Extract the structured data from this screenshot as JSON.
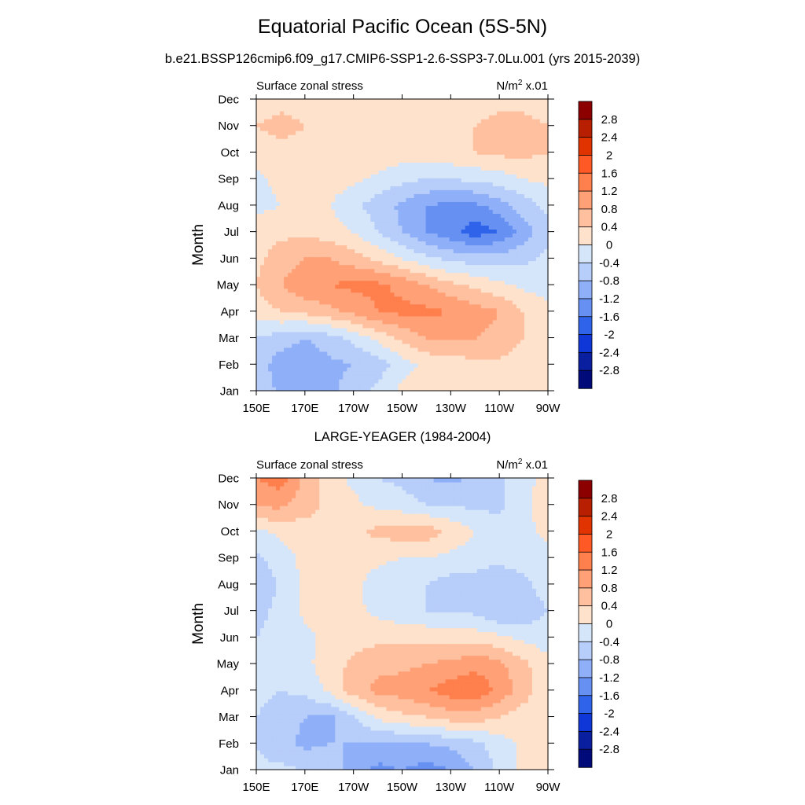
{
  "figure": {
    "title": "Equatorial Pacific Ocean (5S-5N)",
    "case_title": "b.e21.BSSP126cmip6.f09_g17.CMIP6-SSP1-2.6-SSP3-7.0Lu.001 (yrs 2015-2039)",
    "obs_title": "LARGE-YEAGER (1984-2004)"
  },
  "colorbar": {
    "labels": [
      "2.8",
      "2.4",
      "2",
      "1.6",
      "1.2",
      "0.8",
      "0.4",
      "0",
      "-0.4",
      "-0.8",
      "-1.2",
      "-1.6",
      "-2",
      "-2.4",
      "-2.8"
    ],
    "colors": [
      "#8c0000",
      "#b81f00",
      "#e03300",
      "#ff5a26",
      "#ff7f4d",
      "#ffa077",
      "#ffc0a0",
      "#ffe2cc",
      "#d6e6fa",
      "#b7cdfa",
      "#8fb0f8",
      "#6690f2",
      "#2e63ea",
      "#0f36d6",
      "#0a1fa0",
      "#000a78"
    ]
  },
  "chart_data": [
    {
      "type": "heatmap",
      "subtitle_left": "Surface zonal stress",
      "subtitle_right_base": "N/m",
      "subtitle_right_exp": "2",
      "subtitle_right_scale": " x.01",
      "ylabel": "Month",
      "x_tick_labels": [
        "150E",
        "170E",
        "170W",
        "150W",
        "130W",
        "110W",
        "90W"
      ],
      "x_ticks_deg": [
        150,
        170,
        190,
        210,
        230,
        250,
        270
      ],
      "x_range_deg": [
        150,
        270
      ],
      "y_tick_labels": [
        "Jan",
        "Feb",
        "Mar",
        "Apr",
        "May",
        "Jun",
        "Jul",
        "Aug",
        "Sep",
        "Oct",
        "Nov",
        "Dec"
      ],
      "levels": [
        -2.8,
        -2.4,
        -2.0,
        -1.6,
        -1.2,
        -0.8,
        -0.4,
        0,
        0.4,
        0.8,
        1.2,
        1.6,
        2.0,
        2.4,
        2.8
      ],
      "values": [
        [
          -0.5,
          -0.9,
          -1.0,
          -0.9,
          -0.6,
          -0.3,
          0.1,
          0.3,
          0.3,
          0.3,
          0.3,
          0.2,
          0.1
        ],
        [
          -0.6,
          -1.0,
          -1.1,
          -0.9,
          -0.8,
          -0.6,
          -0.2,
          0.1,
          0.2,
          0.3,
          0.3,
          0.2,
          0.1
        ],
        [
          -0.4,
          -0.6,
          -0.8,
          -0.6,
          -0.3,
          0.1,
          0.5,
          0.8,
          0.8,
          0.8,
          0.7,
          0.4,
          0.2
        ],
        [
          0.2,
          0.4,
          0.5,
          0.7,
          0.9,
          1.2,
          1.3,
          1.3,
          1.2,
          1.0,
          0.8,
          0.4,
          0.1
        ],
        [
          0.4,
          0.8,
          1.1,
          1.2,
          1.3,
          1.3,
          1.1,
          0.8,
          0.5,
          0.3,
          0.1,
          -0.1,
          -0.2
        ],
        [
          0.3,
          0.6,
          0.8,
          0.8,
          0.6,
          0.3,
          0.0,
          -0.3,
          -0.5,
          -0.6,
          -0.6,
          -0.5,
          -0.3
        ],
        [
          0.2,
          0.3,
          0.3,
          0.2,
          0.0,
          -0.4,
          -0.8,
          -1.2,
          -1.5,
          -1.8,
          -1.6,
          -1.0,
          -0.5
        ],
        [
          -0.1,
          0.0,
          0.1,
          0.0,
          -0.3,
          -0.6,
          -0.9,
          -1.2,
          -1.3,
          -1.3,
          -1.0,
          -0.6,
          -0.3
        ],
        [
          -0.1,
          0.1,
          0.2,
          0.2,
          0.1,
          -0.1,
          -0.3,
          -0.4,
          -0.4,
          -0.3,
          -0.2,
          0.0,
          0.1
        ],
        [
          0.2,
          0.3,
          0.3,
          0.3,
          0.3,
          0.3,
          0.2,
          0.3,
          0.3,
          0.4,
          0.5,
          0.5,
          0.4
        ],
        [
          0.4,
          0.5,
          0.4,
          0.3,
          0.3,
          0.2,
          0.2,
          0.2,
          0.3,
          0.4,
          0.5,
          0.5,
          0.4
        ],
        [
          0.2,
          0.3,
          0.3,
          0.3,
          0.2,
          0.2,
          0.2,
          0.2,
          0.2,
          0.3,
          0.3,
          0.3,
          0.2
        ]
      ]
    },
    {
      "type": "heatmap",
      "subtitle_left": "Surface zonal stress",
      "subtitle_right_base": "N/m",
      "subtitle_right_exp": "2",
      "subtitle_right_scale": " x.01",
      "ylabel": "Month",
      "x_tick_labels": [
        "150E",
        "170E",
        "170W",
        "150W",
        "130W",
        "110W",
        "90W"
      ],
      "x_ticks_deg": [
        150,
        170,
        190,
        210,
        230,
        250,
        270
      ],
      "x_range_deg": [
        150,
        270
      ],
      "y_tick_labels": [
        "Jan",
        "Feb",
        "Mar",
        "Apr",
        "May",
        "Jun",
        "Jul",
        "Aug",
        "Sep",
        "Oct",
        "Nov",
        "Dec"
      ],
      "levels": [
        -2.8,
        -2.4,
        -2.0,
        -1.6,
        -1.2,
        -0.8,
        -0.4,
        0,
        0.4,
        0.8,
        1.2,
        1.6,
        2.0,
        2.4,
        2.8
      ],
      "values": [
        [
          -0.3,
          -0.3,
          -0.4,
          -0.6,
          -1.0,
          -1.3,
          -1.2,
          -1.4,
          -1.2,
          -0.8,
          -0.3,
          0.1,
          0.2
        ],
        [
          -0.4,
          -0.7,
          -0.9,
          -0.8,
          -0.8,
          -0.9,
          -0.8,
          -0.8,
          -0.7,
          -0.5,
          -0.2,
          0.1,
          0.2
        ],
        [
          -0.4,
          -0.6,
          -0.8,
          -0.9,
          -0.4,
          0.1,
          0.3,
          0.4,
          0.6,
          0.6,
          0.4,
          0.2,
          0.1
        ],
        [
          -0.3,
          -0.4,
          -0.3,
          0.1,
          0.6,
          0.9,
          1.0,
          1.2,
          1.4,
          1.5,
          1.1,
          0.6,
          0.1
        ],
        [
          -0.3,
          -0.3,
          -0.1,
          0.2,
          0.5,
          0.7,
          0.7,
          0.8,
          0.9,
          1.1,
          0.9,
          0.5,
          0.1
        ],
        [
          -0.4,
          -0.3,
          -0.1,
          0.1,
          0.2,
          0.3,
          0.3,
          0.3,
          0.2,
          0.2,
          0.1,
          -0.1,
          -0.2
        ],
        [
          -0.5,
          -0.3,
          0.1,
          0.2,
          0.1,
          -0.1,
          -0.3,
          -0.4,
          -0.4,
          -0.5,
          -0.8,
          -0.7,
          -0.4
        ],
        [
          -0.8,
          -0.3,
          0.1,
          0.2,
          0.1,
          -0.2,
          -0.3,
          -0.4,
          -0.6,
          -0.6,
          -0.7,
          -0.5,
          -0.2
        ],
        [
          -0.5,
          -0.2,
          0.1,
          0.2,
          0.2,
          0.1,
          0.0,
          0.0,
          -0.1,
          -0.2,
          -0.3,
          -0.2,
          -0.1
        ],
        [
          -0.1,
          0.1,
          0.2,
          0.2,
          0.3,
          0.5,
          0.6,
          0.6,
          0.3,
          0.0,
          -0.2,
          -0.1,
          0.1
        ],
        [
          0.9,
          0.9,
          0.6,
          0.3,
          0.1,
          -0.1,
          -0.2,
          -0.4,
          -0.4,
          -0.5,
          -0.5,
          -0.1,
          0.2
        ],
        [
          1.2,
          1.4,
          0.7,
          0.2,
          -0.1,
          -0.4,
          -0.5,
          -0.8,
          -0.9,
          -0.7,
          -0.5,
          -0.1,
          0.1
        ]
      ]
    }
  ]
}
